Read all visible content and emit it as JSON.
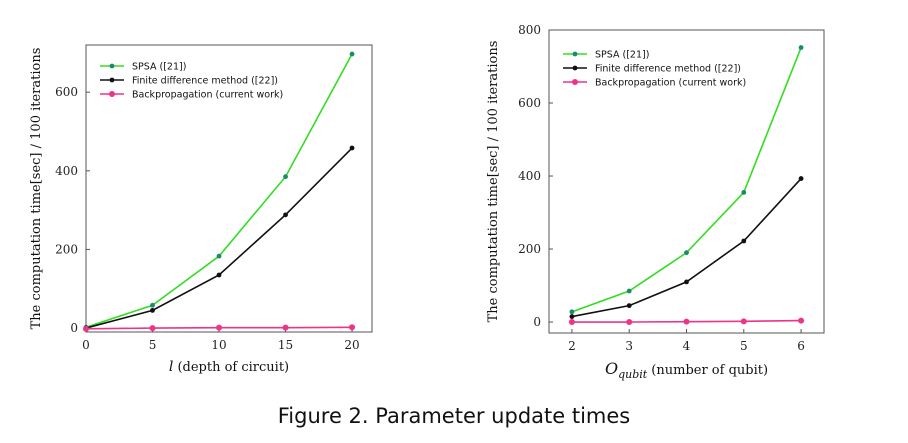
{
  "caption": "Figure 2. Parameter update times",
  "colors": {
    "spsa": "#33dd22",
    "fd": "#111111",
    "bp": "#ee3388",
    "spsa_marker": "#1a8a6e"
  },
  "chart_data": [
    {
      "type": "line",
      "xlabel_var": "l",
      "xlabel_rest": " (depth of circuit)",
      "ylabel": "The computation time[sec] / 100 iterations",
      "xlim": [
        0,
        21.5
      ],
      "ylim": [
        -10,
        720
      ],
      "xticks": [
        0,
        5,
        10,
        15,
        20
      ],
      "yticks": [
        0,
        200,
        400,
        600
      ],
      "grid": false,
      "legend_position": "top-left",
      "x": [
        0,
        5,
        10,
        15,
        20
      ],
      "series": [
        {
          "name": "SPSA ([21])",
          "key": "spsa",
          "values": [
            2,
            58,
            183,
            385,
            697
          ]
        },
        {
          "name": "Finite difference method  ([22])",
          "key": "fd",
          "values": [
            0,
            45,
            135,
            288,
            458
          ]
        },
        {
          "name": "Backpropagation (current work)",
          "key": "bp",
          "values": [
            -2,
            0,
            1,
            1,
            2
          ]
        }
      ]
    },
    {
      "type": "line",
      "xlabel_var": "O",
      "xlabel_sub": "qubit",
      "xlabel_rest": " (number of qubit)",
      "ylabel": "The computation time[sec] / 100 iterations",
      "xlim": [
        1.6,
        6.4
      ],
      "ylim": [
        -30,
        800
      ],
      "xticks": [
        2,
        3,
        4,
        5,
        6
      ],
      "yticks": [
        0,
        200,
        400,
        600,
        800
      ],
      "grid": false,
      "legend_position": "top-left",
      "x": [
        2,
        3,
        4,
        5,
        6
      ],
      "series": [
        {
          "name": "SPSA ([21])",
          "key": "spsa",
          "values": [
            28,
            85,
            190,
            355,
            752
          ]
        },
        {
          "name": "Finite difference method ([22])",
          "key": "fd",
          "values": [
            15,
            45,
            110,
            222,
            393
          ]
        },
        {
          "name": "Backpropagation (current work)",
          "key": "bp",
          "values": [
            0,
            0,
            1,
            2,
            4
          ]
        }
      ]
    }
  ]
}
